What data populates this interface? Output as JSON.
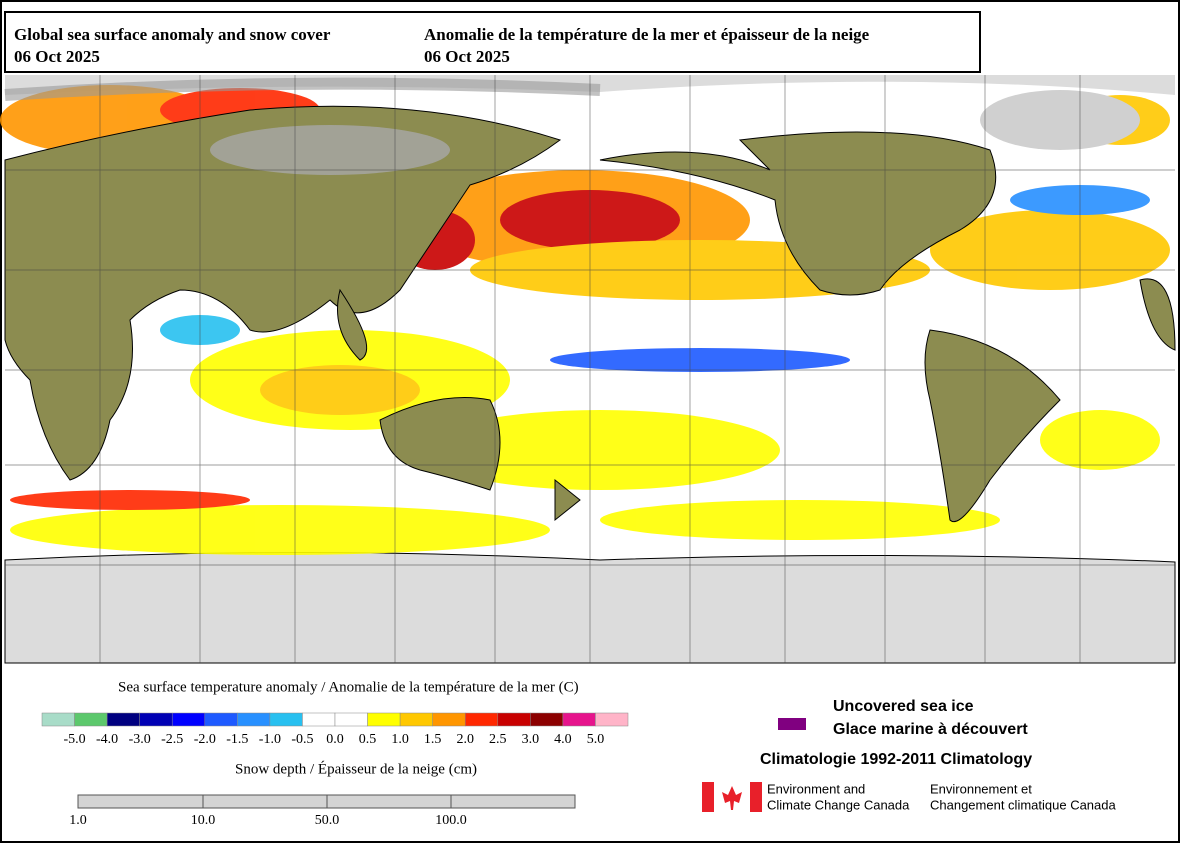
{
  "title_en": {
    "text": "Global sea surface anomaly and snow cover",
    "date": "06 Oct 2025"
  },
  "title_fr": {
    "text": "Anomalie de la température de la mer et épaisseur de la neige",
    "date": "06 Oct 2025"
  },
  "sst_legend": {
    "title": "Sea surface temperature anomaly / Anomalie de la température de la mer (C)",
    "colors": [
      "#a8dcc8",
      "#5cc86c",
      "#000080",
      "#0000b4",
      "#0000ff",
      "#1e5aff",
      "#2890ff",
      "#28c0f0",
      "#ffffff",
      "#ffffff",
      "#ffff00",
      "#ffc800",
      "#ff9600",
      "#ff2800",
      "#c80000",
      "#8c0000",
      "#e6148c",
      "#ffb4c8"
    ],
    "labels": [
      "-5.0",
      "-4.0",
      "-3.0",
      "-2.5",
      "-2.0",
      "-1.5",
      "-1.0",
      "-0.5",
      "0.0",
      "0.5",
      "1.0",
      "1.5",
      "2.0",
      "2.5",
      "3.0",
      "4.0",
      "5.0"
    ]
  },
  "snow_legend": {
    "title": "Snow depth / Épaisseur de la neige (cm)",
    "labels": [
      "1.0",
      "10.0",
      "50.0",
      "100.0"
    ]
  },
  "ice_legend": {
    "en": "Uncovered sea ice",
    "fr": "Glace marine à découvert"
  },
  "climatology": "Climatologie 1992-2011 Climatology",
  "agency": {
    "en_1": "Environment and",
    "en_2": "Climate Change Canada",
    "fr_1": "Environnement et",
    "fr_2": "Changement climatique Canada"
  }
}
